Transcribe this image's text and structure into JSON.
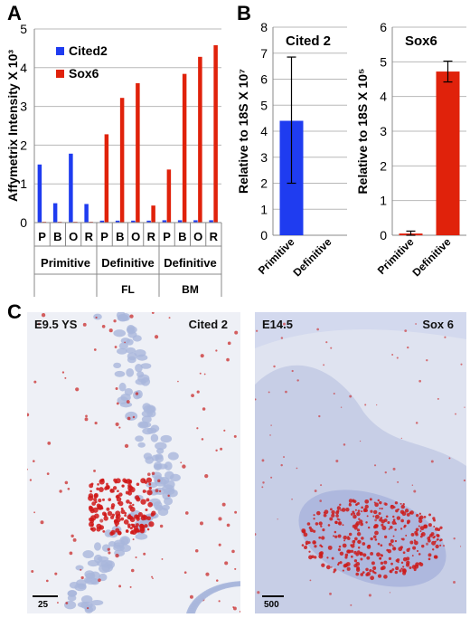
{
  "panels": {
    "a": "A",
    "b": "B",
    "c": "C"
  },
  "chart_data": [
    {
      "type": "bar",
      "ylabel": "Affymetrix Intensity X 10³",
      "ylim": [
        0,
        5
      ],
      "yticks": [
        "0",
        "1",
        "2",
        "3",
        "4",
        "5"
      ],
      "categories": [
        "P",
        "B",
        "O",
        "R",
        "P",
        "B",
        "O",
        "R",
        "P",
        "B",
        "O",
        "R"
      ],
      "groups": [
        {
          "label": "Primitive",
          "sublabel": ""
        },
        {
          "label": "Definitive",
          "sublabel": "FL"
        },
        {
          "label": "Definitive",
          "sublabel": "BM"
        }
      ],
      "series": [
        {
          "name": "Cited2",
          "color": "#1f3cf0",
          "values": [
            1.5,
            0.5,
            1.78,
            0.48,
            0.05,
            0.05,
            0.05,
            0.05,
            0.06,
            0.06,
            0.06,
            0.06
          ]
        },
        {
          "name": "Sox6",
          "color": "#e0220b",
          "values": [
            0.02,
            0.02,
            0.02,
            0.02,
            2.28,
            3.22,
            3.6,
            0.44,
            1.37,
            3.84,
            4.28,
            4.58
          ]
        }
      ],
      "grid": true,
      "legend": "top-left"
    },
    {
      "type": "bar",
      "title": "Cited 2",
      "ylabel": "Relative to 18S X 10⁷",
      "ylim": [
        0,
        8
      ],
      "yticks": [
        "0",
        "1",
        "2",
        "3",
        "4",
        "5",
        "6",
        "7",
        "8"
      ],
      "categories": [
        "Primitive",
        "Definitive"
      ],
      "values": [
        4.4,
        0
      ],
      "errors_low": [
        2.0,
        0
      ],
      "errors_high": [
        6.85,
        0
      ],
      "color": "#1f3cf0",
      "grid": true
    },
    {
      "type": "bar",
      "title": "Sox6",
      "ylabel": "Relative to 18S X 10⁵",
      "ylim": [
        0,
        6
      ],
      "yticks": [
        "0",
        "1",
        "2",
        "3",
        "4",
        "5",
        "6"
      ],
      "categories": [
        "Primitive",
        "Definitive"
      ],
      "values": [
        0.05,
        4.72
      ],
      "errors_low": [
        0.0,
        4.42
      ],
      "errors_high": [
        0.12,
        5.02
      ],
      "color": "#e0220b",
      "grid": true
    }
  ],
  "images": [
    {
      "left_label": "E9.5 YS",
      "right_label": "Cited 2",
      "scale": "25"
    },
    {
      "left_label": "E14.5",
      "right_label": "Sox 6",
      "scale": "500"
    }
  ]
}
